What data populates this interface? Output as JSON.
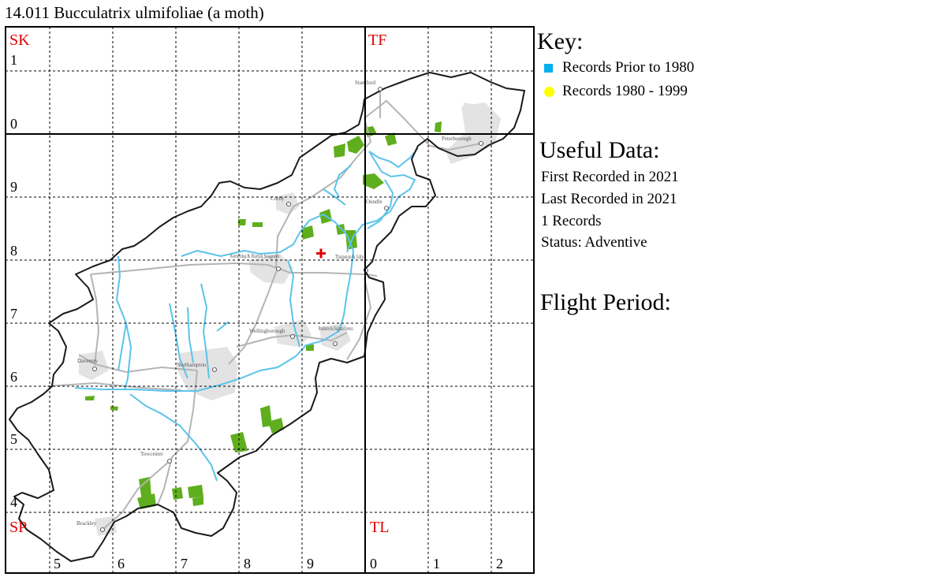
{
  "title": "14.011 Bucculatrix ulmifoliae (a moth)",
  "map": {
    "square_labels": [
      "SK",
      "TF",
      "SP",
      "TL"
    ],
    "row_labels": [
      "1",
      "0",
      "9",
      "8",
      "7",
      "6",
      "5",
      "4"
    ],
    "col_labels": [
      "5",
      "6",
      "7",
      "8",
      "9",
      "0",
      "1",
      "2"
    ],
    "towns": [
      "Stamford",
      "Peterborough",
      "Corby",
      "Oundle",
      "Kettering & Barton Seagrave",
      "Thrapston & Islip",
      "Wellingborough",
      "Rushden & Higham Ferrers",
      "Daventry",
      "Northampton",
      "Towcester",
      "Brackley"
    ],
    "record_marker": "red-cross",
    "colors": {
      "square_label": "#e00000",
      "grid": "#000000",
      "county_border": "#1a1a1a",
      "rivers": "#5bc3ea",
      "roads": "#b4b4b4",
      "urban": "#e3e3e3",
      "woodland": "#5fae1e",
      "record": "#e00000"
    }
  },
  "key": {
    "heading": "Key:",
    "items": [
      {
        "label": "Records Prior to 1980",
        "color": "#00b0f0",
        "shape": "square"
      },
      {
        "label": "Records 1980 - 1999",
        "color": "#ffff00",
        "shape": "circle"
      }
    ]
  },
  "useful": {
    "heading": "Useful Data:",
    "first": "First Recorded in 2021",
    "last": "Last Recorded in 2021",
    "count": "1 Records",
    "status": "Status: Adventive"
  },
  "flight": {
    "heading": "Flight Period:"
  }
}
